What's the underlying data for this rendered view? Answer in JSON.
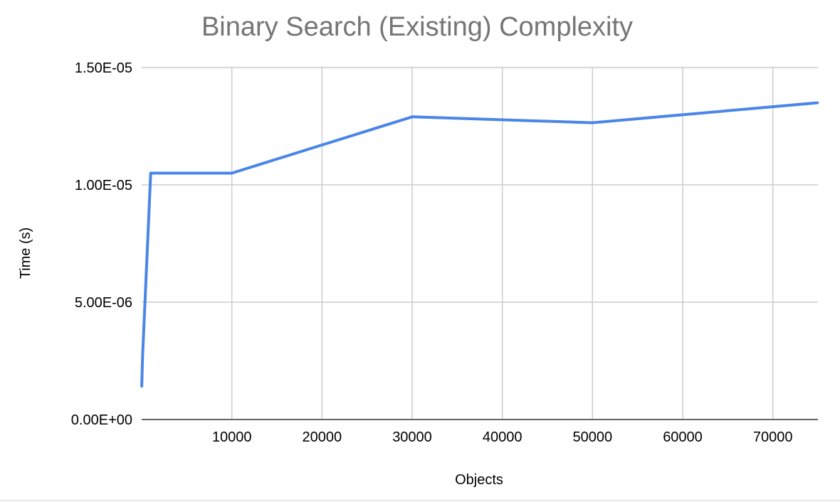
{
  "chart_data": {
    "type": "line",
    "title": "Binary Search (Existing) Complexity",
    "xlabel": "Objects",
    "ylabel": "Time (s)",
    "xlim": [
      0,
      75000
    ],
    "ylim": [
      0,
      1.5e-05
    ],
    "x_ticks": [
      10000,
      20000,
      30000,
      40000,
      50000,
      60000,
      70000
    ],
    "x_tick_labels": [
      "10000",
      "20000",
      "30000",
      "40000",
      "50000",
      "60000",
      "70000"
    ],
    "y_ticks": [
      0,
      5e-06,
      1e-05,
      1.5e-05
    ],
    "y_tick_labels": [
      "0.00E+00",
      "5.00E-06",
      "1.00E-05",
      "1.50E-05"
    ],
    "grid": true,
    "legend": "none",
    "series": [
      {
        "color": "#4a86e8",
        "x": [
          10,
          100,
          1000,
          10000,
          30000,
          50000,
          75000
        ],
        "y": [
          1.4e-06,
          2.7e-06,
          1.05e-05,
          1.05e-05,
          1.29e-05,
          1.265e-05,
          1.35e-05
        ]
      }
    ]
  }
}
